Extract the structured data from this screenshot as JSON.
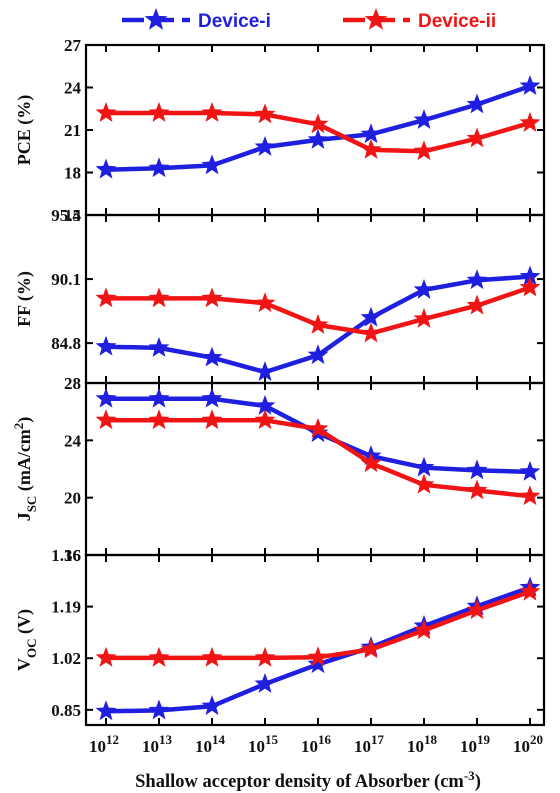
{
  "colors": {
    "device_i": "#1f1fe0",
    "device_ii": "#f01414",
    "axis": "#000000"
  },
  "chart_data": {
    "type": "line",
    "legend": {
      "placement": "top",
      "entries": [
        "Device-i",
        "Device-ii"
      ]
    },
    "x": {
      "label_main": "Shallow acceptor density  of Absorber (cm",
      "label_sup": "-3",
      "label_close": ")",
      "scale": "log",
      "values": [
        1000000000000.0,
        10000000000000.0,
        100000000000000.0,
        1000000000000000.0,
        1e+16,
        1e+17,
        1e+18,
        1e+19,
        1e+20
      ],
      "tick_base": "10",
      "tick_exponents": [
        "12",
        "13",
        "14",
        "15",
        "16",
        "17",
        "18",
        "19",
        "20"
      ]
    },
    "panels": [
      {
        "id": "pce",
        "ylabel": "PCE (%)",
        "ylim": [
          15,
          27
        ],
        "yticks": [
          "15",
          "18",
          "21",
          "24",
          "27"
        ],
        "ytick_values": [
          15,
          18,
          21,
          24,
          27
        ],
        "series": [
          {
            "name": "Device-i",
            "values": [
              18.2,
              18.3,
              18.5,
              19.8,
              20.3,
              20.7,
              21.7,
              22.8,
              24.1
            ]
          },
          {
            "name": "Device-ii",
            "values": [
              22.2,
              22.2,
              22.2,
              22.1,
              21.4,
              19.6,
              19.5,
              20.4,
              21.5
            ]
          }
        ]
      },
      {
        "id": "ff",
        "ylabel": "FF (%)",
        "ylim": [
          81.5,
          95.4
        ],
        "yticks": [
          "84.8",
          "90.1",
          "95.4"
        ],
        "ytick_values": [
          84.8,
          90.1,
          95.4
        ],
        "series": [
          {
            "name": "Device-i",
            "values": [
              84.5,
              84.4,
              83.6,
              82.4,
              83.8,
              86.9,
              89.2,
              90.0,
              90.3
            ]
          },
          {
            "name": "Device-ii",
            "values": [
              88.5,
              88.5,
              88.5,
              88.1,
              86.3,
              85.6,
              86.8,
              87.9,
              89.4
            ]
          }
        ]
      },
      {
        "id": "jsc",
        "ylabel_main": "J",
        "ylabel_sub": "SC",
        "ylabel_rest": " (mA/cm",
        "ylabel_sup": "2",
        "ylabel_close": ")",
        "ylim": [
          16,
          28
        ],
        "yticks": [
          "16",
          "20",
          "24",
          "28"
        ],
        "ytick_values": [
          16,
          20,
          24,
          28
        ],
        "series": [
          {
            "name": "Device-i",
            "values": [
              26.9,
              26.9,
              26.9,
              26.4,
              24.5,
              22.9,
              22.1,
              21.9,
              21.8
            ]
          },
          {
            "name": "Device-ii",
            "values": [
              25.4,
              25.4,
              25.4,
              25.4,
              24.8,
              22.4,
              20.9,
              20.5,
              20.1
            ]
          }
        ]
      },
      {
        "id": "voc",
        "ylabel_main": "V",
        "ylabel_sub": "OC",
        "ylabel_rest": " (V)",
        "ylim": [
          0.8,
          1.36
        ],
        "yticks": [
          "0.85",
          "1.02",
          "1.19",
          "1.36"
        ],
        "ytick_values": [
          0.85,
          1.02,
          1.19,
          1.36
        ],
        "series": [
          {
            "name": "Device-i",
            "values": [
              0.845,
              0.848,
              0.862,
              0.935,
              1.0,
              1.056,
              1.126,
              1.191,
              1.253
            ]
          },
          {
            "name": "Device-ii",
            "values": [
              1.021,
              1.021,
              1.021,
              1.021,
              1.023,
              1.049,
              1.112,
              1.178,
              1.239
            ]
          }
        ]
      }
    ]
  }
}
